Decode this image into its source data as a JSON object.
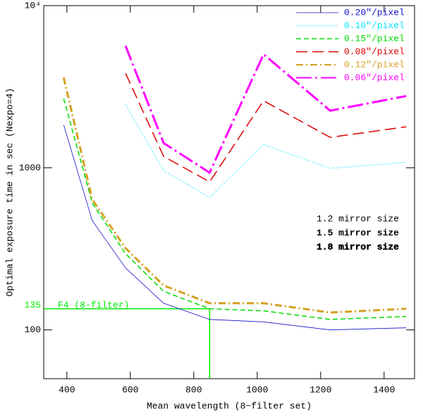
{
  "chart_data": {
    "type": "line",
    "x_label": "Mean wavelength (8−filter set)",
    "y_label": "Optimal exposure time in sec (Nexpo=4)",
    "x": [
      390,
      480,
      585,
      705,
      850,
      1020,
      1230,
      1470
    ],
    "xlim": [
      327,
      1496
    ],
    "xticks": [
      400,
      600,
      800,
      1000,
      1200,
      1400
    ],
    "ylim": [
      50,
      10000
    ],
    "y_scale": "log",
    "yticks": [
      {
        "value": 10000,
        "label": "10⁴"
      },
      1000,
      100
    ],
    "legend": "top-right",
    "series": [
      {
        "name": "0.20″/pixel",
        "color": "#1010c8",
        "style": "solid",
        "values": [
          1840,
          472,
          241,
          146,
          116,
          112,
          100,
          103
        ]
      },
      {
        "name": "0.10″/pixel",
        "color": "#00e5ff",
        "style": "dotted",
        "values": [
          null,
          null,
          2460,
          961,
          656,
          1390,
          991,
          1080
        ]
      },
      {
        "name": "0.15″/pixel",
        "color": "#00dd00",
        "style": "dashed",
        "values": [
          2670,
          607,
          295,
          173,
          135,
          131,
          116,
          121
        ]
      },
      {
        "name": "0.08″/pixel",
        "color": "#dd0000",
        "style": "long-dash",
        "values": [
          null,
          null,
          3830,
          1175,
          819,
          2590,
          1540,
          1790
        ]
      },
      {
        "name": "0.12″/pixel",
        "color": "#d4a020",
        "style": "dash-dot",
        "values": [
          3600,
          637,
          319,
          188,
          146,
          146,
          128,
          135
        ]
      },
      {
        "name": "0.06″/pixel",
        "color": "#ff00ff",
        "style": "long-dash-dot",
        "values": [
          null,
          null,
          5650,
          1420,
          933,
          5010,
          2250,
          2770
        ]
      }
    ],
    "reference": {
      "value": 135,
      "x": 850,
      "label": "F4 (8-filter)",
      "color": "#00ee00"
    },
    "notes": [
      "1.2 mirror size",
      "1.5 mirror size",
      "1.8 mirror size"
    ]
  }
}
